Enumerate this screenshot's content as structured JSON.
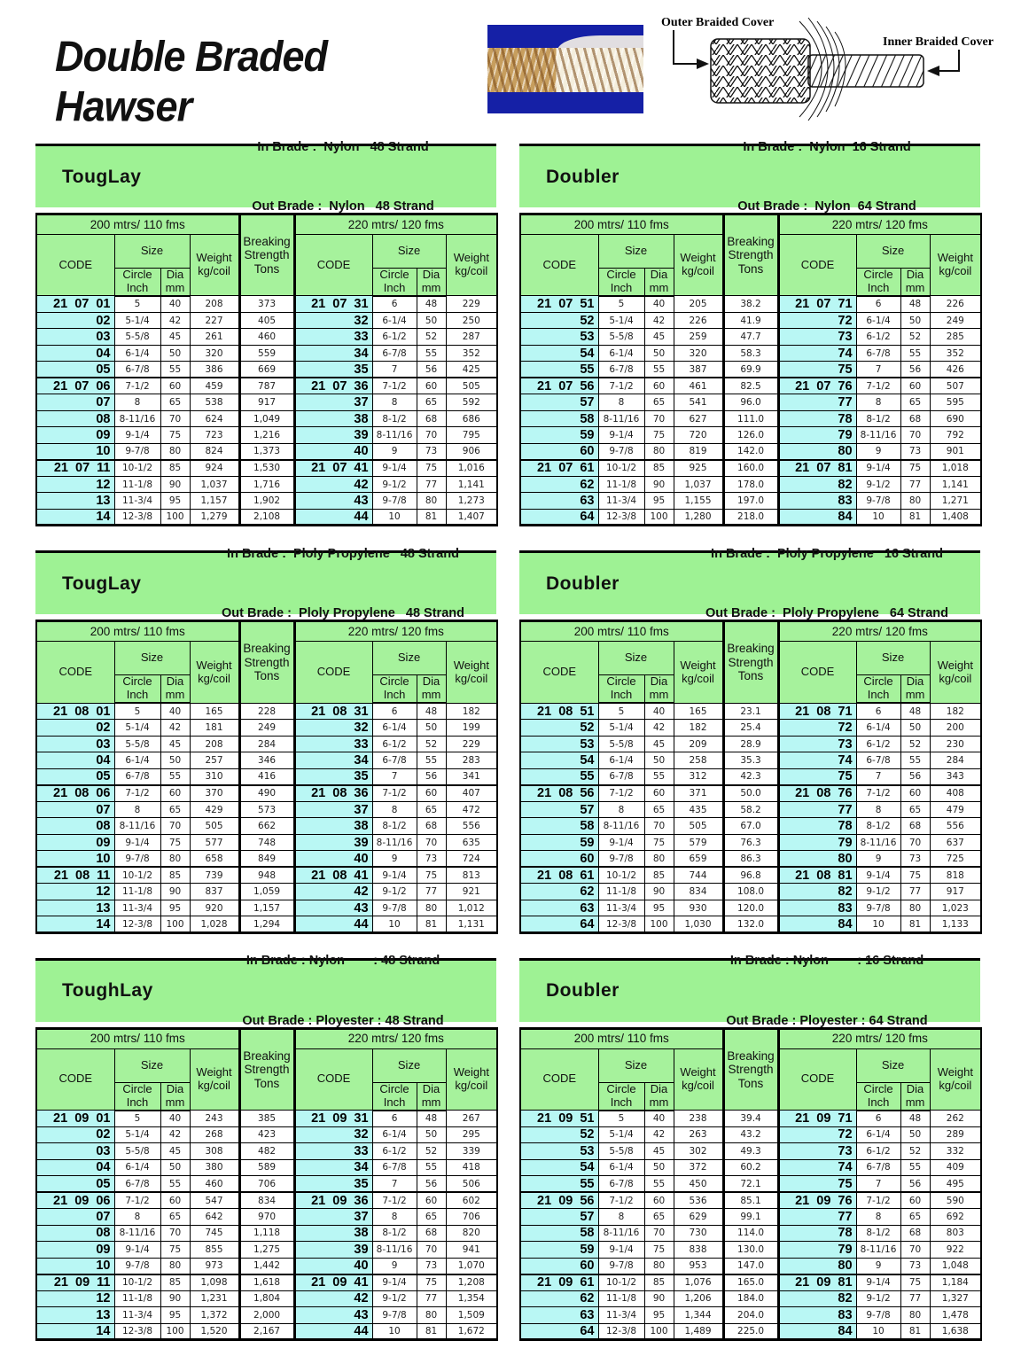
{
  "title": "Double Braded Hawser",
  "diagram": {
    "outer_label": "Outer Braided Cover",
    "inner_label": "Inner Braided Cover"
  },
  "colors": {
    "green": "#a6f29c",
    "bandgreen": "#9ef294",
    "cyan": "#b9f7f4",
    "blue": "#1520a6"
  },
  "headers": {
    "left_band": "200 mtrs/ 110 fms",
    "right_band": "220 mtrs/ 120 fms",
    "code": "CODE",
    "size": "Size",
    "circle_inch": "Circle\nInch",
    "dia_mm": "Dia\nmm",
    "weight": "Weight\nkg/coil",
    "breaking": "Breaking\nStrength\nTons"
  },
  "tables": [
    {
      "product": "TougLay",
      "in_line": "In Brade :  Nylon   48 Strand",
      "out_line": "Out Brade :  Nylon   48 Strand",
      "prefix": "21 07",
      "left": [
        [
          "01",
          "5",
          "40",
          "208",
          "373"
        ],
        [
          "02",
          "5-1/4",
          "42",
          "227",
          "405"
        ],
        [
          "03",
          "5-5/8",
          "45",
          "261",
          "460"
        ],
        [
          "04",
          "6-1/4",
          "50",
          "320",
          "559"
        ],
        [
          "05",
          "6-7/8",
          "55",
          "386",
          "669"
        ],
        [
          "06",
          "7-1/2",
          "60",
          "459",
          "787"
        ],
        [
          "07",
          "8",
          "65",
          "538",
          "917"
        ],
        [
          "08",
          "8-11/16",
          "70",
          "624",
          "1,049"
        ],
        [
          "09",
          "9-1/4",
          "75",
          "723",
          "1,216"
        ],
        [
          "10",
          "9-7/8",
          "80",
          "824",
          "1,373"
        ],
        [
          "11",
          "10-1/2",
          "85",
          "924",
          "1,530"
        ],
        [
          "12",
          "11-1/8",
          "90",
          "1,037",
          "1,716"
        ],
        [
          "13",
          "11-3/4",
          "95",
          "1,157",
          "1,902"
        ],
        [
          "14",
          "12-3/8",
          "100",
          "1,279",
          "2,108"
        ]
      ],
      "right": [
        [
          "31",
          "6",
          "48",
          "229"
        ],
        [
          "32",
          "6-1/4",
          "50",
          "250"
        ],
        [
          "33",
          "6-1/2",
          "52",
          "287"
        ],
        [
          "34",
          "6-7/8",
          "55",
          "352"
        ],
        [
          "35",
          "7",
          "56",
          "425"
        ],
        [
          "36",
          "7-1/2",
          "60",
          "505"
        ],
        [
          "37",
          "8",
          "65",
          "592"
        ],
        [
          "38",
          "8-1/2",
          "68",
          "686"
        ],
        [
          "39",
          "8-11/16",
          "70",
          "795"
        ],
        [
          "40",
          "9",
          "73",
          "906"
        ],
        [
          "41",
          "9-1/4",
          "75",
          "1,016"
        ],
        [
          "42",
          "9-1/2",
          "77",
          "1,141"
        ],
        [
          "43",
          "9-7/8",
          "80",
          "1,273"
        ],
        [
          "44",
          "10",
          "81",
          "1,407"
        ]
      ]
    },
    {
      "product": "Doubler",
      "in_line": "In Brade :  Nylon  16 Strand",
      "out_line": "Out Brade :  Nylon  64 Strand",
      "prefix": "21 07",
      "left": [
        [
          "51",
          "5",
          "40",
          "205",
          "38.2"
        ],
        [
          "52",
          "5-1/4",
          "42",
          "226",
          "41.9"
        ],
        [
          "53",
          "5-5/8",
          "45",
          "259",
          "47.7"
        ],
        [
          "54",
          "6-1/4",
          "50",
          "320",
          "58.3"
        ],
        [
          "55",
          "6-7/8",
          "55",
          "387",
          "69.9"
        ],
        [
          "56",
          "7-1/2",
          "60",
          "461",
          "82.5"
        ],
        [
          "57",
          "8",
          "65",
          "541",
          "96.0"
        ],
        [
          "58",
          "8-11/16",
          "70",
          "627",
          "111.0"
        ],
        [
          "59",
          "9-1/4",
          "75",
          "720",
          "126.0"
        ],
        [
          "60",
          "9-7/8",
          "80",
          "819",
          "142.0"
        ],
        [
          "61",
          "10-1/2",
          "85",
          "925",
          "160.0"
        ],
        [
          "62",
          "11-1/8",
          "90",
          "1,037",
          "178.0"
        ],
        [
          "63",
          "11-3/4",
          "95",
          "1,155",
          "197.0"
        ],
        [
          "64",
          "12-3/8",
          "100",
          "1,280",
          "218.0"
        ]
      ],
      "right": [
        [
          "71",
          "6",
          "48",
          "226"
        ],
        [
          "72",
          "6-1/4",
          "50",
          "249"
        ],
        [
          "73",
          "6-1/2",
          "52",
          "285"
        ],
        [
          "74",
          "6-7/8",
          "55",
          "352"
        ],
        [
          "75",
          "7",
          "56",
          "426"
        ],
        [
          "76",
          "7-1/2",
          "60",
          "507"
        ],
        [
          "77",
          "8",
          "65",
          "595"
        ],
        [
          "78",
          "8-1/2",
          "68",
          "690"
        ],
        [
          "79",
          "8-11/16",
          "70",
          "792"
        ],
        [
          "80",
          "9",
          "73",
          "901"
        ],
        [
          "81",
          "9-1/4",
          "75",
          "1,018"
        ],
        [
          "82",
          "9-1/2",
          "77",
          "1,141"
        ],
        [
          "83",
          "9-7/8",
          "80",
          "1,271"
        ],
        [
          "84",
          "10",
          "81",
          "1,408"
        ]
      ]
    },
    {
      "product": "TougLay",
      "in_line": "In Brade :  Ploly Propylene   48 Strand",
      "out_line": "Out Brade :  Ploly Propylene   48 Strand",
      "prefix": "21 08",
      "left": [
        [
          "01",
          "5",
          "40",
          "165",
          "228"
        ],
        [
          "02",
          "5-1/4",
          "42",
          "181",
          "249"
        ],
        [
          "03",
          "5-5/8",
          "45",
          "208",
          "284"
        ],
        [
          "04",
          "6-1/4",
          "50",
          "257",
          "346"
        ],
        [
          "05",
          "6-7/8",
          "55",
          "310",
          "416"
        ],
        [
          "06",
          "7-1/2",
          "60",
          "370",
          "490"
        ],
        [
          "07",
          "8",
          "65",
          "429",
          "573"
        ],
        [
          "08",
          "8-11/16",
          "70",
          "505",
          "662"
        ],
        [
          "09",
          "9-1/4",
          "75",
          "577",
          "748"
        ],
        [
          "10",
          "9-7/8",
          "80",
          "658",
          "849"
        ],
        [
          "11",
          "10-1/2",
          "85",
          "739",
          "948"
        ],
        [
          "12",
          "11-1/8",
          "90",
          "837",
          "1,059"
        ],
        [
          "13",
          "11-3/4",
          "95",
          "920",
          "1,157"
        ],
        [
          "14",
          "12-3/8",
          "100",
          "1,028",
          "1,294"
        ]
      ],
      "right": [
        [
          "31",
          "6",
          "48",
          "182"
        ],
        [
          "32",
          "6-1/4",
          "50",
          "199"
        ],
        [
          "33",
          "6-1/2",
          "52",
          "229"
        ],
        [
          "34",
          "6-7/8",
          "55",
          "283"
        ],
        [
          "35",
          "7",
          "56",
          "341"
        ],
        [
          "36",
          "7-1/2",
          "60",
          "407"
        ],
        [
          "37",
          "8",
          "65",
          "472"
        ],
        [
          "38",
          "8-1/2",
          "68",
          "556"
        ],
        [
          "39",
          "8-11/16",
          "70",
          "635"
        ],
        [
          "40",
          "9",
          "73",
          "724"
        ],
        [
          "41",
          "9-1/4",
          "75",
          "813"
        ],
        [
          "42",
          "9-1/2",
          "77",
          "921"
        ],
        [
          "43",
          "9-7/8",
          "80",
          "1,012"
        ],
        [
          "44",
          "10",
          "81",
          "1,131"
        ]
      ]
    },
    {
      "product": "Doubler",
      "in_line": "In Brade :  Ploly Propylene   16 Strand",
      "out_line": "Out Brade :  Ploly Propylene   64 Strand",
      "prefix": "21 08",
      "left": [
        [
          "51",
          "5",
          "40",
          "165",
          "23.1"
        ],
        [
          "52",
          "5-1/4",
          "42",
          "182",
          "25.4"
        ],
        [
          "53",
          "5-5/8",
          "45",
          "209",
          "28.9"
        ],
        [
          "54",
          "6-1/4",
          "50",
          "258",
          "35.3"
        ],
        [
          "55",
          "6-7/8",
          "55",
          "312",
          "42.3"
        ],
        [
          "56",
          "7-1/2",
          "60",
          "371",
          "50.0"
        ],
        [
          "57",
          "8",
          "65",
          "435",
          "58.2"
        ],
        [
          "58",
          "8-11/16",
          "70",
          "505",
          "67.0"
        ],
        [
          "59",
          "9-1/4",
          "75",
          "579",
          "76.3"
        ],
        [
          "60",
          "9-7/8",
          "80",
          "659",
          "86.3"
        ],
        [
          "61",
          "10-1/2",
          "85",
          "744",
          "96.8"
        ],
        [
          "62",
          "11-1/8",
          "90",
          "834",
          "108.0"
        ],
        [
          "63",
          "11-3/4",
          "95",
          "930",
          "120.0"
        ],
        [
          "64",
          "12-3/8",
          "100",
          "1,030",
          "132.0"
        ]
      ],
      "right": [
        [
          "71",
          "6",
          "48",
          "182"
        ],
        [
          "72",
          "6-1/4",
          "50",
          "200"
        ],
        [
          "73",
          "6-1/2",
          "52",
          "230"
        ],
        [
          "74",
          "6-7/8",
          "55",
          "284"
        ],
        [
          "75",
          "7",
          "56",
          "343"
        ],
        [
          "76",
          "7-1/2",
          "60",
          "408"
        ],
        [
          "77",
          "8",
          "65",
          "479"
        ],
        [
          "78",
          "8-1/2",
          "68",
          "556"
        ],
        [
          "79",
          "8-11/16",
          "70",
          "637"
        ],
        [
          "80",
          "9",
          "73",
          "725"
        ],
        [
          "81",
          "9-1/4",
          "75",
          "818"
        ],
        [
          "82",
          "9-1/2",
          "77",
          "917"
        ],
        [
          "83",
          "9-7/8",
          "80",
          "1,023"
        ],
        [
          "84",
          "10",
          "81",
          "1,133"
        ]
      ]
    },
    {
      "product": "ToughLay",
      "in_line": "In Brade : Nylon        : 48 Strand",
      "out_line": "Out Brade : Ployester : 48 Strand",
      "prefix": "21 09",
      "left": [
        [
          "01",
          "5",
          "40",
          "243",
          "385"
        ],
        [
          "02",
          "5-1/4",
          "42",
          "268",
          "423"
        ],
        [
          "03",
          "5-5/8",
          "45",
          "308",
          "482"
        ],
        [
          "04",
          "6-1/4",
          "50",
          "380",
          "589"
        ],
        [
          "05",
          "6-7/8",
          "55",
          "460",
          "706"
        ],
        [
          "06",
          "7-1/2",
          "60",
          "547",
          "834"
        ],
        [
          "07",
          "8",
          "65",
          "642",
          "970"
        ],
        [
          "08",
          "8-11/16",
          "70",
          "745",
          "1,118"
        ],
        [
          "09",
          "9-1/4",
          "75",
          "855",
          "1,275"
        ],
        [
          "10",
          "9-7/8",
          "80",
          "973",
          "1,442"
        ],
        [
          "11",
          "10-1/2",
          "85",
          "1,098",
          "1,618"
        ],
        [
          "12",
          "11-1/8",
          "90",
          "1,231",
          "1,804"
        ],
        [
          "13",
          "11-3/4",
          "95",
          "1,372",
          "2,000"
        ],
        [
          "14",
          "12-3/8",
          "100",
          "1,520",
          "2,167"
        ]
      ],
      "right": [
        [
          "31",
          "6",
          "48",
          "267"
        ],
        [
          "32",
          "6-1/4",
          "50",
          "295"
        ],
        [
          "33",
          "6-1/2",
          "52",
          "339"
        ],
        [
          "34",
          "6-7/8",
          "55",
          "418"
        ],
        [
          "35",
          "7",
          "56",
          "506"
        ],
        [
          "36",
          "7-1/2",
          "60",
          "602"
        ],
        [
          "37",
          "8",
          "65",
          "706"
        ],
        [
          "38",
          "8-1/2",
          "68",
          "820"
        ],
        [
          "39",
          "8-11/16",
          "70",
          "941"
        ],
        [
          "40",
          "9",
          "73",
          "1,070"
        ],
        [
          "41",
          "9-1/4",
          "75",
          "1,208"
        ],
        [
          "42",
          "9-1/2",
          "77",
          "1,354"
        ],
        [
          "43",
          "9-7/8",
          "80",
          "1,509"
        ],
        [
          "44",
          "10",
          "81",
          "1,672"
        ]
      ]
    },
    {
      "product": "Doubler",
      "in_line": "In Brade : Nylon        : 16 Strand",
      "out_line": "Out Brade : Ployester : 64 Strand",
      "prefix": "21 09",
      "left": [
        [
          "51",
          "5",
          "40",
          "238",
          "39.4"
        ],
        [
          "52",
          "5-1/4",
          "42",
          "263",
          "43.2"
        ],
        [
          "53",
          "5-5/8",
          "45",
          "302",
          "49.3"
        ],
        [
          "54",
          "6-1/4",
          "50",
          "372",
          "60.2"
        ],
        [
          "55",
          "6-7/8",
          "55",
          "450",
          "72.1"
        ],
        [
          "56",
          "7-1/2",
          "60",
          "536",
          "85.1"
        ],
        [
          "57",
          "8",
          "65",
          "629",
          "99.1"
        ],
        [
          "58",
          "8-11/16",
          "70",
          "730",
          "114.0"
        ],
        [
          "59",
          "9-1/4",
          "75",
          "838",
          "130.0"
        ],
        [
          "60",
          "9-7/8",
          "80",
          "953",
          "147.0"
        ],
        [
          "61",
          "10-1/2",
          "85",
          "1,076",
          "165.0"
        ],
        [
          "62",
          "11-1/8",
          "90",
          "1,206",
          "184.0"
        ],
        [
          "63",
          "11-3/4",
          "95",
          "1,344",
          "204.0"
        ],
        [
          "64",
          "12-3/8",
          "100",
          "1,489",
          "225.0"
        ]
      ],
      "right": [
        [
          "71",
          "6",
          "48",
          "262"
        ],
        [
          "72",
          "6-1/4",
          "50",
          "289"
        ],
        [
          "73",
          "6-1/2",
          "52",
          "332"
        ],
        [
          "74",
          "6-7/8",
          "55",
          "409"
        ],
        [
          "75",
          "7",
          "56",
          "495"
        ],
        [
          "76",
          "7-1/2",
          "60",
          "590"
        ],
        [
          "77",
          "8",
          "65",
          "692"
        ],
        [
          "78",
          "8-1/2",
          "68",
          "803"
        ],
        [
          "79",
          "8-11/16",
          "70",
          "922"
        ],
        [
          "80",
          "9",
          "73",
          "1,048"
        ],
        [
          "81",
          "9-1/4",
          "75",
          "1,184"
        ],
        [
          "82",
          "9-1/2",
          "77",
          "1,327"
        ],
        [
          "83",
          "9-7/8",
          "80",
          "1,478"
        ],
        [
          "84",
          "10",
          "81",
          "1,638"
        ]
      ]
    }
  ]
}
